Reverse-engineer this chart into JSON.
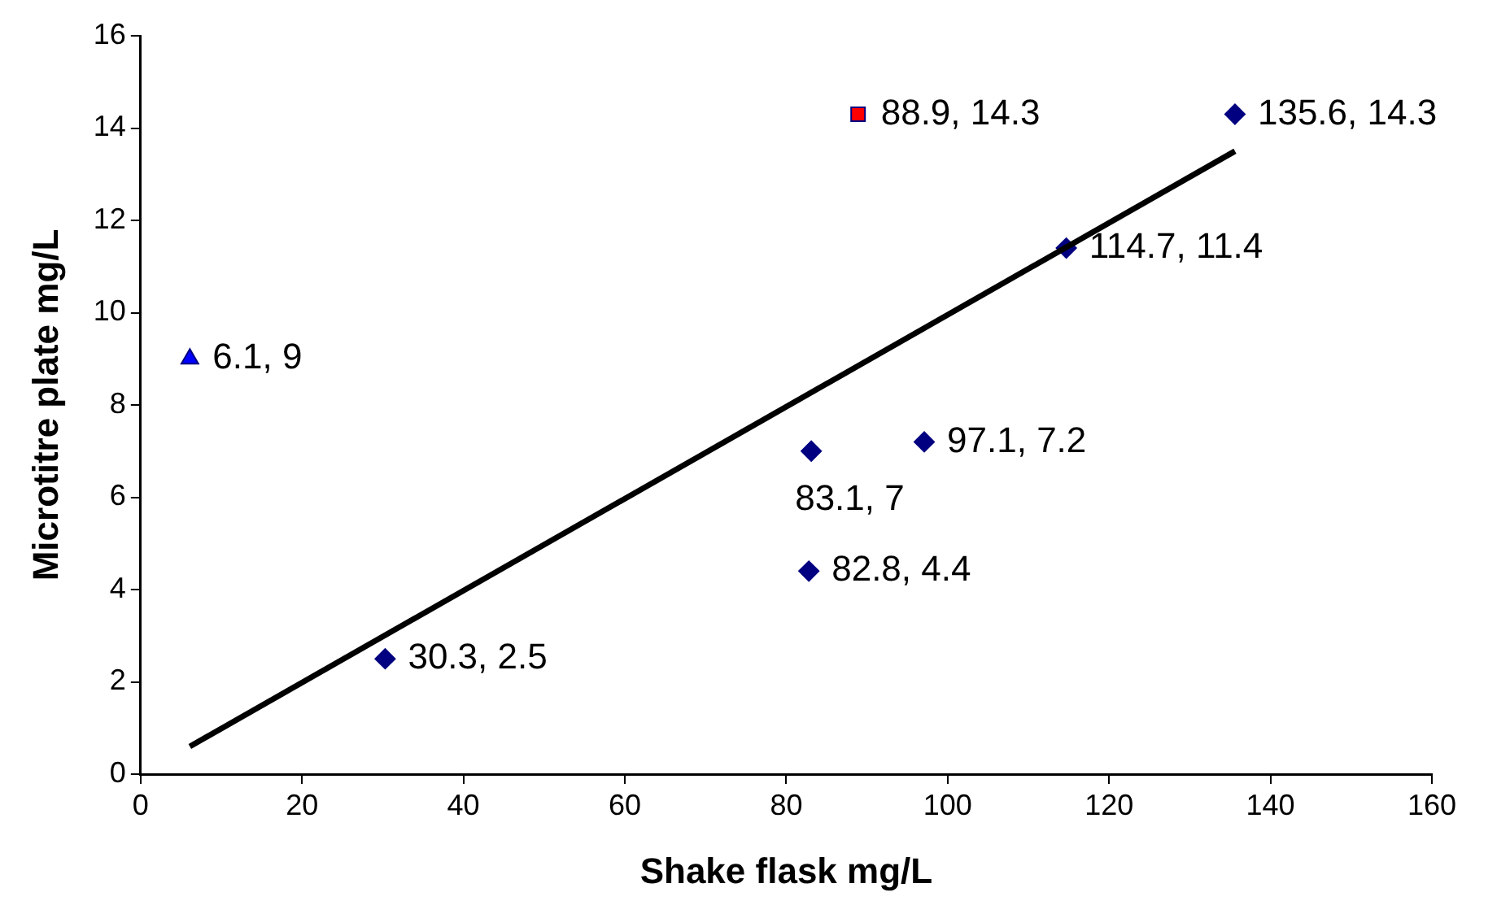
{
  "chart_data": {
    "type": "scatter",
    "xlabel": "Shake flask mg/L",
    "ylabel": "Microtitre plate mg/L",
    "xlim": [
      0,
      160
    ],
    "xticks": [
      0,
      20,
      40,
      60,
      80,
      100,
      120,
      140,
      160
    ],
    "ylim": [
      0,
      16
    ],
    "yticks": [
      0,
      2,
      4,
      6,
      8,
      10,
      12,
      14,
      16
    ],
    "grid": false,
    "legend": false,
    "series": [
      {
        "type": "line",
        "color": "#000000",
        "marker": "none",
        "line_style": "solid",
        "x": [
          6.1,
          135.6
        ],
        "values": [
          0.6,
          13.5
        ]
      },
      {
        "type": "scatter",
        "color": "#000080",
        "marker": "diamond",
        "x": [
          30.3,
          82.8,
          83.1,
          97.1,
          114.7,
          135.6
        ],
        "values": [
          2.5,
          4.4,
          7,
          7.2,
          11.4,
          14.3
        ],
        "value_labels": [
          "30.3, 2.5",
          "82.8, 4.4",
          "83.1, 7",
          "97.1, 7.2",
          "114.7, 11.4",
          "135.6, 14.3"
        ]
      },
      {
        "type": "scatter",
        "color": "#ff0000",
        "marker": "square",
        "x": [
          88.9
        ],
        "values": [
          14.3
        ],
        "value_labels": [
          "88.9, 14.3"
        ]
      },
      {
        "type": "scatter",
        "color": "#0000ff",
        "marker": "triangle",
        "x": [
          6.1
        ],
        "values": [
          9
        ],
        "value_labels": [
          "6.1, 9"
        ]
      }
    ]
  }
}
